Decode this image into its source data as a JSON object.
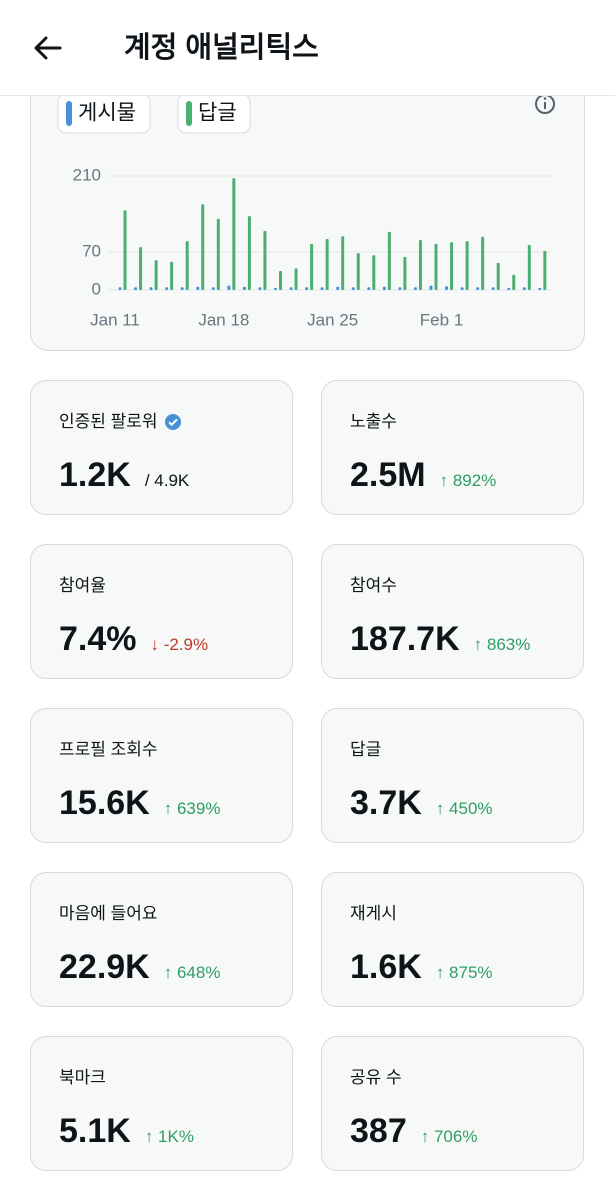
{
  "header": {
    "title": "계정 애널리틱스"
  },
  "chart_data": {
    "type": "bar",
    "categories": [
      "Jan 11",
      null,
      null,
      null,
      null,
      null,
      null,
      "Jan 18",
      null,
      null,
      null,
      null,
      null,
      null,
      "Jan 25",
      null,
      null,
      null,
      null,
      null,
      null,
      "Feb 1",
      null,
      null,
      null,
      null,
      null,
      null
    ],
    "series": [
      {
        "name": "게시물",
        "color": "#4a90d9",
        "values": [
          5,
          5,
          5,
          5,
          5,
          6,
          5,
          8,
          6,
          5,
          4,
          5,
          5,
          5,
          6,
          5,
          5,
          6,
          5,
          5,
          8,
          7,
          5,
          5,
          5,
          4,
          5,
          4
        ]
      },
      {
        "name": "답글",
        "color": "#4caf72",
        "values": [
          147,
          79,
          55,
          52,
          90,
          158,
          131,
          206,
          136,
          109,
          35,
          40,
          85,
          94,
          99,
          68,
          64,
          107,
          61,
          92,
          85,
          88,
          90,
          98,
          50,
          28,
          83,
          72
        ]
      }
    ],
    "ylim": [
      0,
      210
    ],
    "yticks": [
      0,
      70,
      210
    ],
    "grid": true
  },
  "cards": [
    {
      "label": "인증된 팔로워",
      "value": "1.2K",
      "total": "/ 4.9K",
      "verified": true
    },
    {
      "label": "노출수",
      "value": "2.5M",
      "change": "↑ 892%",
      "trend": "up"
    },
    {
      "label": "참여율",
      "value": "7.4%",
      "change": "↓ -2.9%",
      "trend": "down"
    },
    {
      "label": "참여수",
      "value": "187.7K",
      "change": "↑ 863%",
      "trend": "up"
    },
    {
      "label": "프로필 조회수",
      "value": "15.6K",
      "change": "↑ 639%",
      "trend": "up"
    },
    {
      "label": "답글",
      "value": "3.7K",
      "change": "↑ 450%",
      "trend": "up"
    },
    {
      "label": "마음에 들어요",
      "value": "22.9K",
      "change": "↑ 648%",
      "trend": "up"
    },
    {
      "label": "재게시",
      "value": "1.6K",
      "change": "↑ 875%",
      "trend": "up"
    },
    {
      "label": "북마크",
      "value": "5.1K",
      "change": "↑ 1K%",
      "trend": "up"
    },
    {
      "label": "공유 수",
      "value": "387",
      "change": "↑ 706%",
      "trend": "up"
    }
  ]
}
